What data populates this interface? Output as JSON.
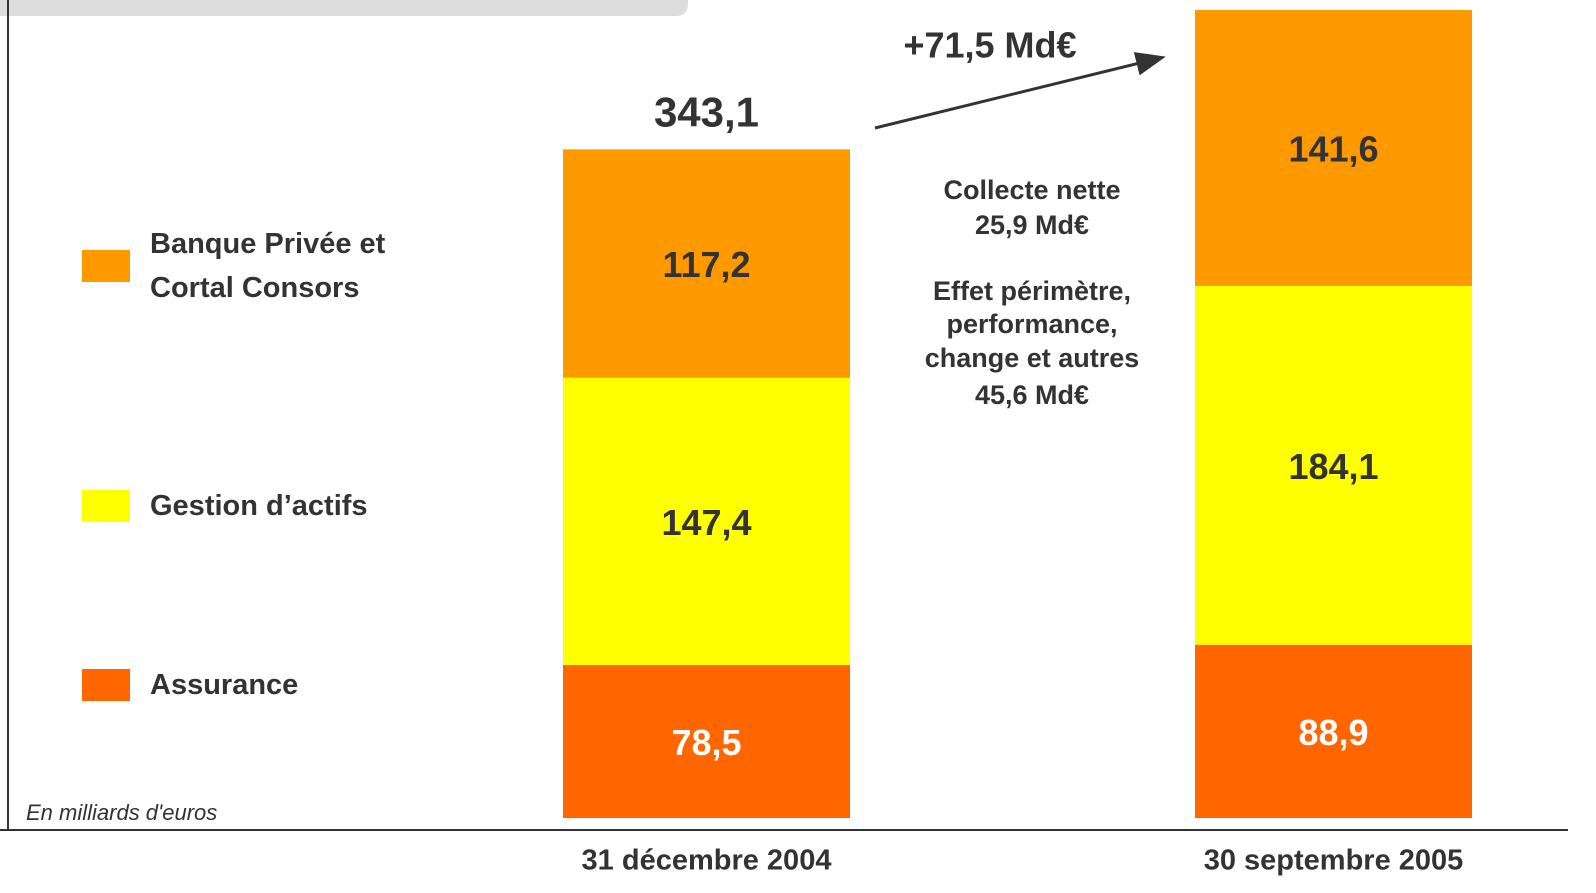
{
  "chart_data": {
    "type": "stacked_bar",
    "categories": [
      "31 décembre 2004",
      "30 septembre 2005"
    ],
    "series": [
      {
        "name": "Assurance",
        "color": "#ff6600",
        "values": [
          78.5,
          88.9
        ],
        "value_labels": [
          "78,5",
          "88,9"
        ],
        "label_color": "#ffffff"
      },
      {
        "name": "Gestion d’actifs",
        "color": "#ffff00",
        "values": [
          147.4,
          184.1
        ],
        "value_labels": [
          "147,4",
          "184,1"
        ],
        "label_color": "#333333"
      },
      {
        "name": "Banque Privée et Cortal Consors",
        "color": "#ff9900",
        "values": [
          117.2,
          141.6
        ],
        "value_labels": [
          "117,2",
          "141,6"
        ],
        "label_color": "#333333"
      }
    ],
    "totals": [
      343.1,
      null
    ],
    "total_labels": [
      "343,1",
      null
    ],
    "change_annotation": "+71,5 Md€",
    "notes": [
      "Collecte nette",
      "25,9 Md€",
      "Effet périmètre,",
      "performance,",
      "change et autres",
      "45,6 Md€"
    ],
    "footnote": "En milliards d'euros"
  }
}
